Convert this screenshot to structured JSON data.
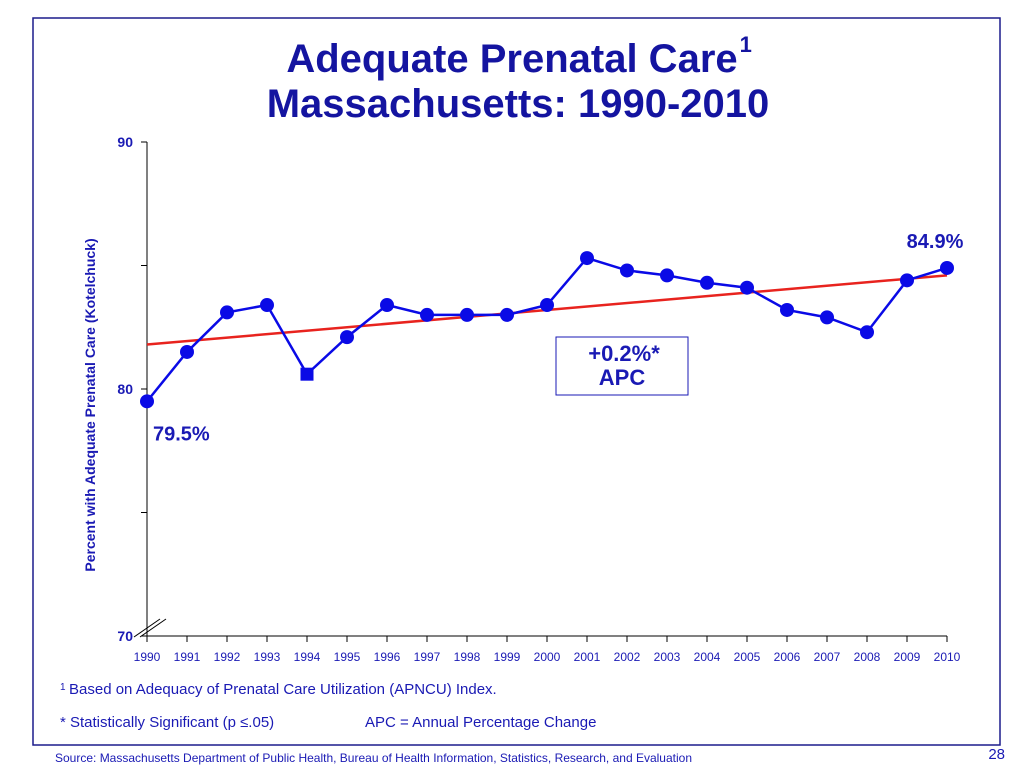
{
  "chart_data": {
    "type": "line",
    "title": "Adequate Prenatal Care",
    "title_superscript": "1",
    "subtitle": "Massachusetts: 1990-2010",
    "y_label": "Percent with Adequate Prenatal Care (Kotelchuck)",
    "x": [
      1990,
      1991,
      1992,
      1993,
      1994,
      1995,
      1996,
      1997,
      1998,
      1999,
      2000,
      2001,
      2002,
      2003,
      2004,
      2005,
      2006,
      2007,
      2008,
      2009,
      2010
    ],
    "xlim": [
      1990,
      2010
    ],
    "ylim": [
      70,
      90
    ],
    "yticks": [
      70,
      80,
      90
    ],
    "minor_yticks": [
      75,
      85
    ],
    "series": [
      {
        "color": "#0a0ae6",
        "values": [
          79.5,
          81.5,
          83.1,
          83.4,
          80.6,
          82.1,
          83.4,
          83.0,
          83.0,
          83.0,
          83.4,
          85.3,
          84.8,
          84.6,
          84.3,
          84.1,
          83.2,
          82.9,
          82.3,
          84.4,
          84.9
        ],
        "value_labels": [
          "79.5%",
          null,
          null,
          null,
          null,
          null,
          null,
          null,
          null,
          null,
          null,
          null,
          null,
          null,
          null,
          null,
          null,
          null,
          null,
          null,
          "84.9%"
        ],
        "square_marker_index": 4
      }
    ],
    "trend": {
      "color": "#e8231e",
      "x": [
        1990,
        2010
      ],
      "values": [
        81.8,
        84.6
      ]
    },
    "annotation": [
      "+0.2%*",
      "APC"
    ],
    "footnote_marker": "1",
    "footnote": "Based on Adequacy of Prenatal Care Utilization (APNCU) Index.",
    "significance_note": "* Statistically Significant  (p ≤.05)",
    "apc_note": "APC = Annual Percentage Change",
    "source": "Source:  Massachusetts Department of Public Health, Bureau of Health Information, Statistics, Research, and Evaluation",
    "page_number": "28"
  }
}
